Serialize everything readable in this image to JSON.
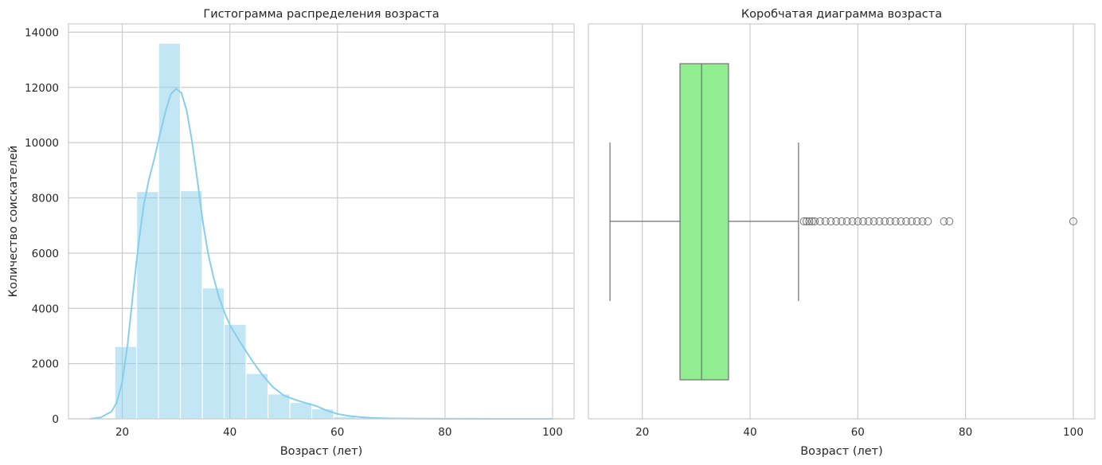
{
  "chart_data": [
    {
      "type": "bar",
      "title": "Гистограмма распределения возраста",
      "xlabel": "Возраст (лет)",
      "ylabel": "Количество соискателей",
      "xlim": [
        10,
        104
      ],
      "ylim": [
        0,
        14300
      ],
      "xticks": [
        20,
        40,
        60,
        80,
        100
      ],
      "yticks": [
        0,
        2000,
        4000,
        6000,
        8000,
        10000,
        12000,
        14000
      ],
      "bin_edges": [
        18.6,
        22.67,
        26.74,
        30.81,
        34.88,
        38.95,
        43.02,
        47.09,
        51.16,
        55.23,
        59.3,
        63.37,
        67.44,
        71.51,
        75.58,
        79.65,
        83.72,
        87.79,
        91.86,
        95.93,
        100
      ],
      "counts": [
        2620,
        8230,
        13600,
        8260,
        4740,
        3420,
        1640,
        900,
        590,
        360,
        80,
        45,
        20,
        12,
        6,
        3,
        2,
        1,
        1,
        1
      ],
      "kde": {
        "x": [
          14,
          16,
          18,
          19,
          20,
          21,
          22,
          23,
          24,
          25,
          26,
          27,
          28,
          29,
          30,
          31,
          32,
          33,
          34,
          35,
          36,
          37,
          38,
          39,
          40,
          42,
          44,
          46,
          48,
          50,
          52,
          54,
          56,
          58,
          60,
          62,
          64,
          66,
          68,
          70,
          75,
          80,
          90,
          100
        ],
        "y": [
          0,
          50,
          260,
          600,
          1350,
          2700,
          4550,
          6300,
          7750,
          8700,
          9450,
          10300,
          11100,
          11750,
          11950,
          11800,
          11150,
          10000,
          8600,
          7100,
          5950,
          5100,
          4400,
          3850,
          3400,
          2750,
          2150,
          1600,
          1150,
          850,
          700,
          580,
          470,
          300,
          180,
          110,
          70,
          40,
          25,
          15,
          6,
          2,
          0,
          0
        ]
      },
      "bar_color": "#87ceeb",
      "line_color": "#87ceeb",
      "grid": true
    },
    {
      "type": "box",
      "title": "Коробчатая диаграмма возраста",
      "xlabel": "Возраст (лет)",
      "xlim": [
        10,
        104
      ],
      "xticks": [
        20,
        40,
        60,
        80,
        100
      ],
      "whisker_low": 14,
      "q1": 27,
      "median": 31,
      "q3": 36,
      "whisker_high": 49,
      "outliers": [
        50,
        50.5,
        51,
        51.5,
        52,
        53,
        54,
        55,
        56,
        57,
        58,
        59,
        60,
        61,
        62,
        63,
        64,
        65,
        66,
        67,
        68,
        69,
        70,
        71,
        72,
        73,
        76,
        77,
        100
      ],
      "box_color": "#90ee90",
      "line_color": "#707070",
      "grid": true
    }
  ]
}
